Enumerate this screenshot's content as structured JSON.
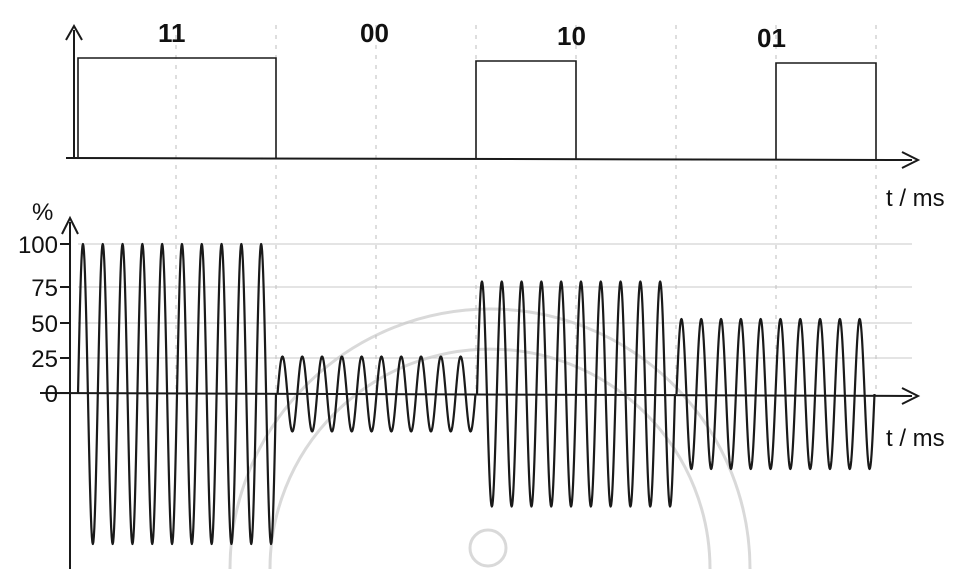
{
  "bit_labels": [
    "11",
    "00",
    "10",
    "01"
  ],
  "top_axis_label": "t / ms",
  "bottom_axis_label": "t / ms",
  "y_unit": "%",
  "y_ticks": [
    "100",
    "75",
    "50",
    "25",
    "0"
  ],
  "chart_data": {
    "type": "line",
    "y_tick_values": [
      100,
      75,
      50,
      25,
      0
    ],
    "segments": [
      {
        "bits": "11",
        "amplitude_percent": 100
      },
      {
        "bits": "00",
        "amplitude_percent": 25
      },
      {
        "bits": "10",
        "amplitude_percent": 75
      },
      {
        "bits": "01",
        "amplitude_percent": 50
      }
    ],
    "carrier_cycles_per_segment": 10
  }
}
